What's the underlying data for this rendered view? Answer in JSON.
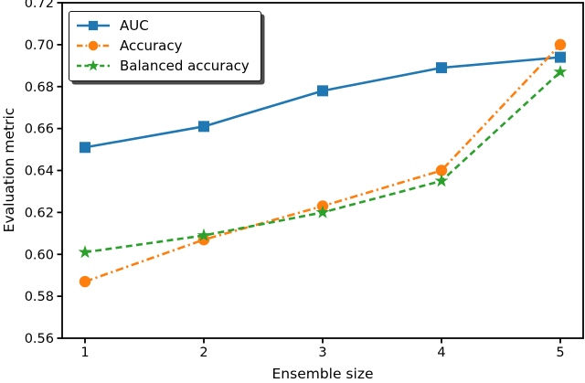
{
  "figure": {
    "background": "#ffffff",
    "axis_color": "#000000"
  },
  "chart_data": {
    "type": "line",
    "title": "",
    "xlabel": "Ensemble size",
    "ylabel": "Evaluation metric",
    "x": [
      1,
      2,
      3,
      4,
      5
    ],
    "xtick_labels": [
      "1",
      "2",
      "3",
      "4",
      "5"
    ],
    "ylim": [
      0.56,
      0.72
    ],
    "yticks": [
      0.56,
      0.58,
      0.6,
      0.62,
      0.64,
      0.66,
      0.68,
      0.7,
      0.72
    ],
    "ytick_labels": [
      "0.56",
      "0.58",
      "0.60",
      "0.62",
      "0.64",
      "0.66",
      "0.68",
      "0.70",
      "0.72"
    ],
    "grid": false,
    "legend_position": "upper-left",
    "series": [
      {
        "name": "AUC",
        "color": "#1f77b4",
        "linestyle": "solid",
        "marker": "square",
        "values": [
          0.651,
          0.661,
          0.678,
          0.689,
          0.694
        ]
      },
      {
        "name": "Accuracy",
        "color": "#ff7f0e",
        "linestyle": "dashdot",
        "marker": "circle",
        "values": [
          0.587,
          0.607,
          0.623,
          0.64,
          0.7
        ]
      },
      {
        "name": "Balanced accuracy",
        "color": "#2ca02c",
        "linestyle": "dashed",
        "marker": "star",
        "values": [
          0.601,
          0.609,
          0.62,
          0.635,
          0.687
        ]
      }
    ]
  }
}
